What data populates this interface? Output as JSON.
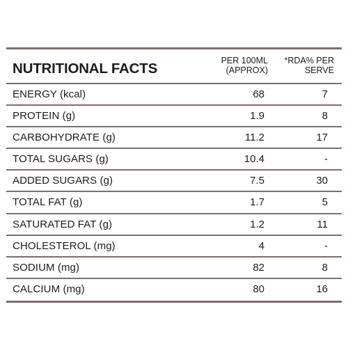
{
  "table": {
    "title": "NUTRITIONAL FACTS",
    "col_per": [
      "PER 100ML",
      "(APPROX)"
    ],
    "col_rda": [
      "*RDA% PER",
      "SERVE"
    ],
    "rows": [
      {
        "label": "ENERGY (kcal)",
        "per": "68",
        "rda": "7"
      },
      {
        "label": "PROTEIN (g)",
        "per": "1.9",
        "rda": "8"
      },
      {
        "label": "CARBOHYDRATE (g)",
        "per": "11.2",
        "rda": "17"
      },
      {
        "label": "TOTAL SUGARS (g)",
        "per": "10.4",
        "rda": "-"
      },
      {
        "label": "ADDED SUGARS (g)",
        "per": "7.5",
        "rda": "30"
      },
      {
        "label": "TOTAL FAT (g)",
        "per": "1.7",
        "rda": "5"
      },
      {
        "label": "SATURATED FAT (g)",
        "per": "1.2",
        "rda": "11"
      },
      {
        "label": "CHOLESTEROL (mg)",
        "per": "4",
        "rda": "-"
      },
      {
        "label": "SODIUM (mg)",
        "per": "82",
        "rda": "8"
      },
      {
        "label": "CALCIUM (mg)",
        "per": "80",
        "rda": "16"
      }
    ]
  }
}
